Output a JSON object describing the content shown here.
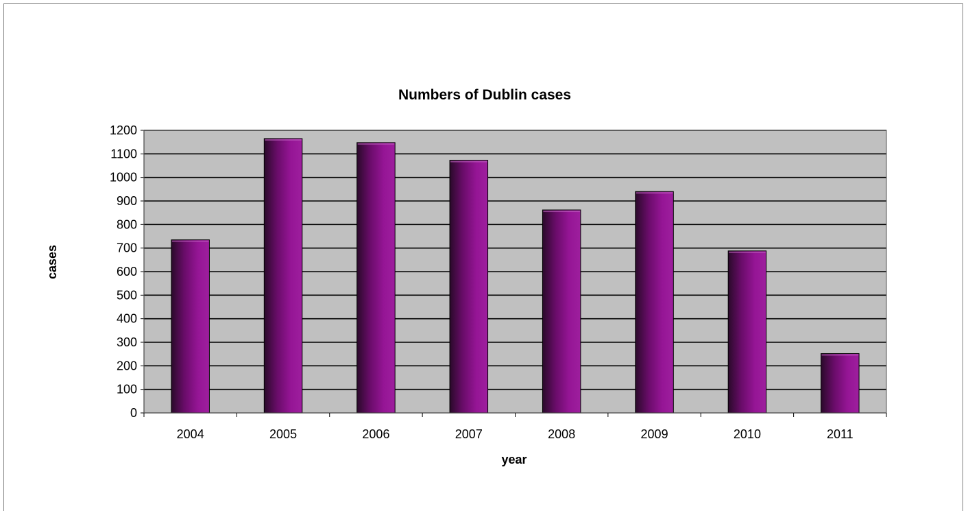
{
  "chart_data": {
    "type": "bar",
    "title": "Numbers of Dublin cases",
    "xlabel": "year",
    "ylabel": "cases",
    "categories": [
      "2004",
      "2005",
      "2006",
      "2007",
      "2008",
      "2009",
      "2010",
      "2011"
    ],
    "values": [
      735,
      1165,
      1148,
      1073,
      862,
      940,
      688,
      252
    ],
    "ylim": [
      0,
      1200
    ],
    "yticks": [
      0,
      100,
      200,
      300,
      400,
      500,
      600,
      700,
      800,
      900,
      1000,
      1100,
      1200
    ],
    "grid": true,
    "legend": "none",
    "colors": {
      "plot_background": "#c0c0c0",
      "bar_dark": "#3a0a3a",
      "bar_mid": "#8c0f8c",
      "bar_light": "#9b1a9b",
      "gridline": "#000000"
    }
  }
}
